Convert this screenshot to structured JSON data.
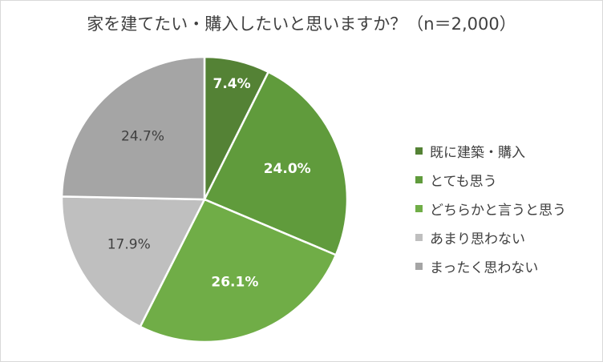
{
  "chart_data": {
    "type": "pie",
    "title": "家を建てたい・購入したいと思いますか？（n＝2,000）",
    "categories": [
      "既に建築・購入",
      "とても思う",
      "どちらかと言うと思う",
      "あまり思わない",
      "まったく思わない"
    ],
    "values": [
      7.4,
      24.0,
      26.1,
      17.9,
      24.7
    ],
    "labels": [
      "7.4%",
      "24.0%",
      "26.1%",
      "17.9%",
      "24.7%"
    ],
    "colors": [
      "#548235",
      "#609b3c",
      "#70ad47",
      "#bfbfbf",
      "#a5a5a5"
    ],
    "label_colors": [
      "#ffffff",
      "#ffffff",
      "#ffffff",
      "#404040",
      "#404040"
    ],
    "start_angle": "12 o'clock, clockwise",
    "legend_position": "right"
  }
}
